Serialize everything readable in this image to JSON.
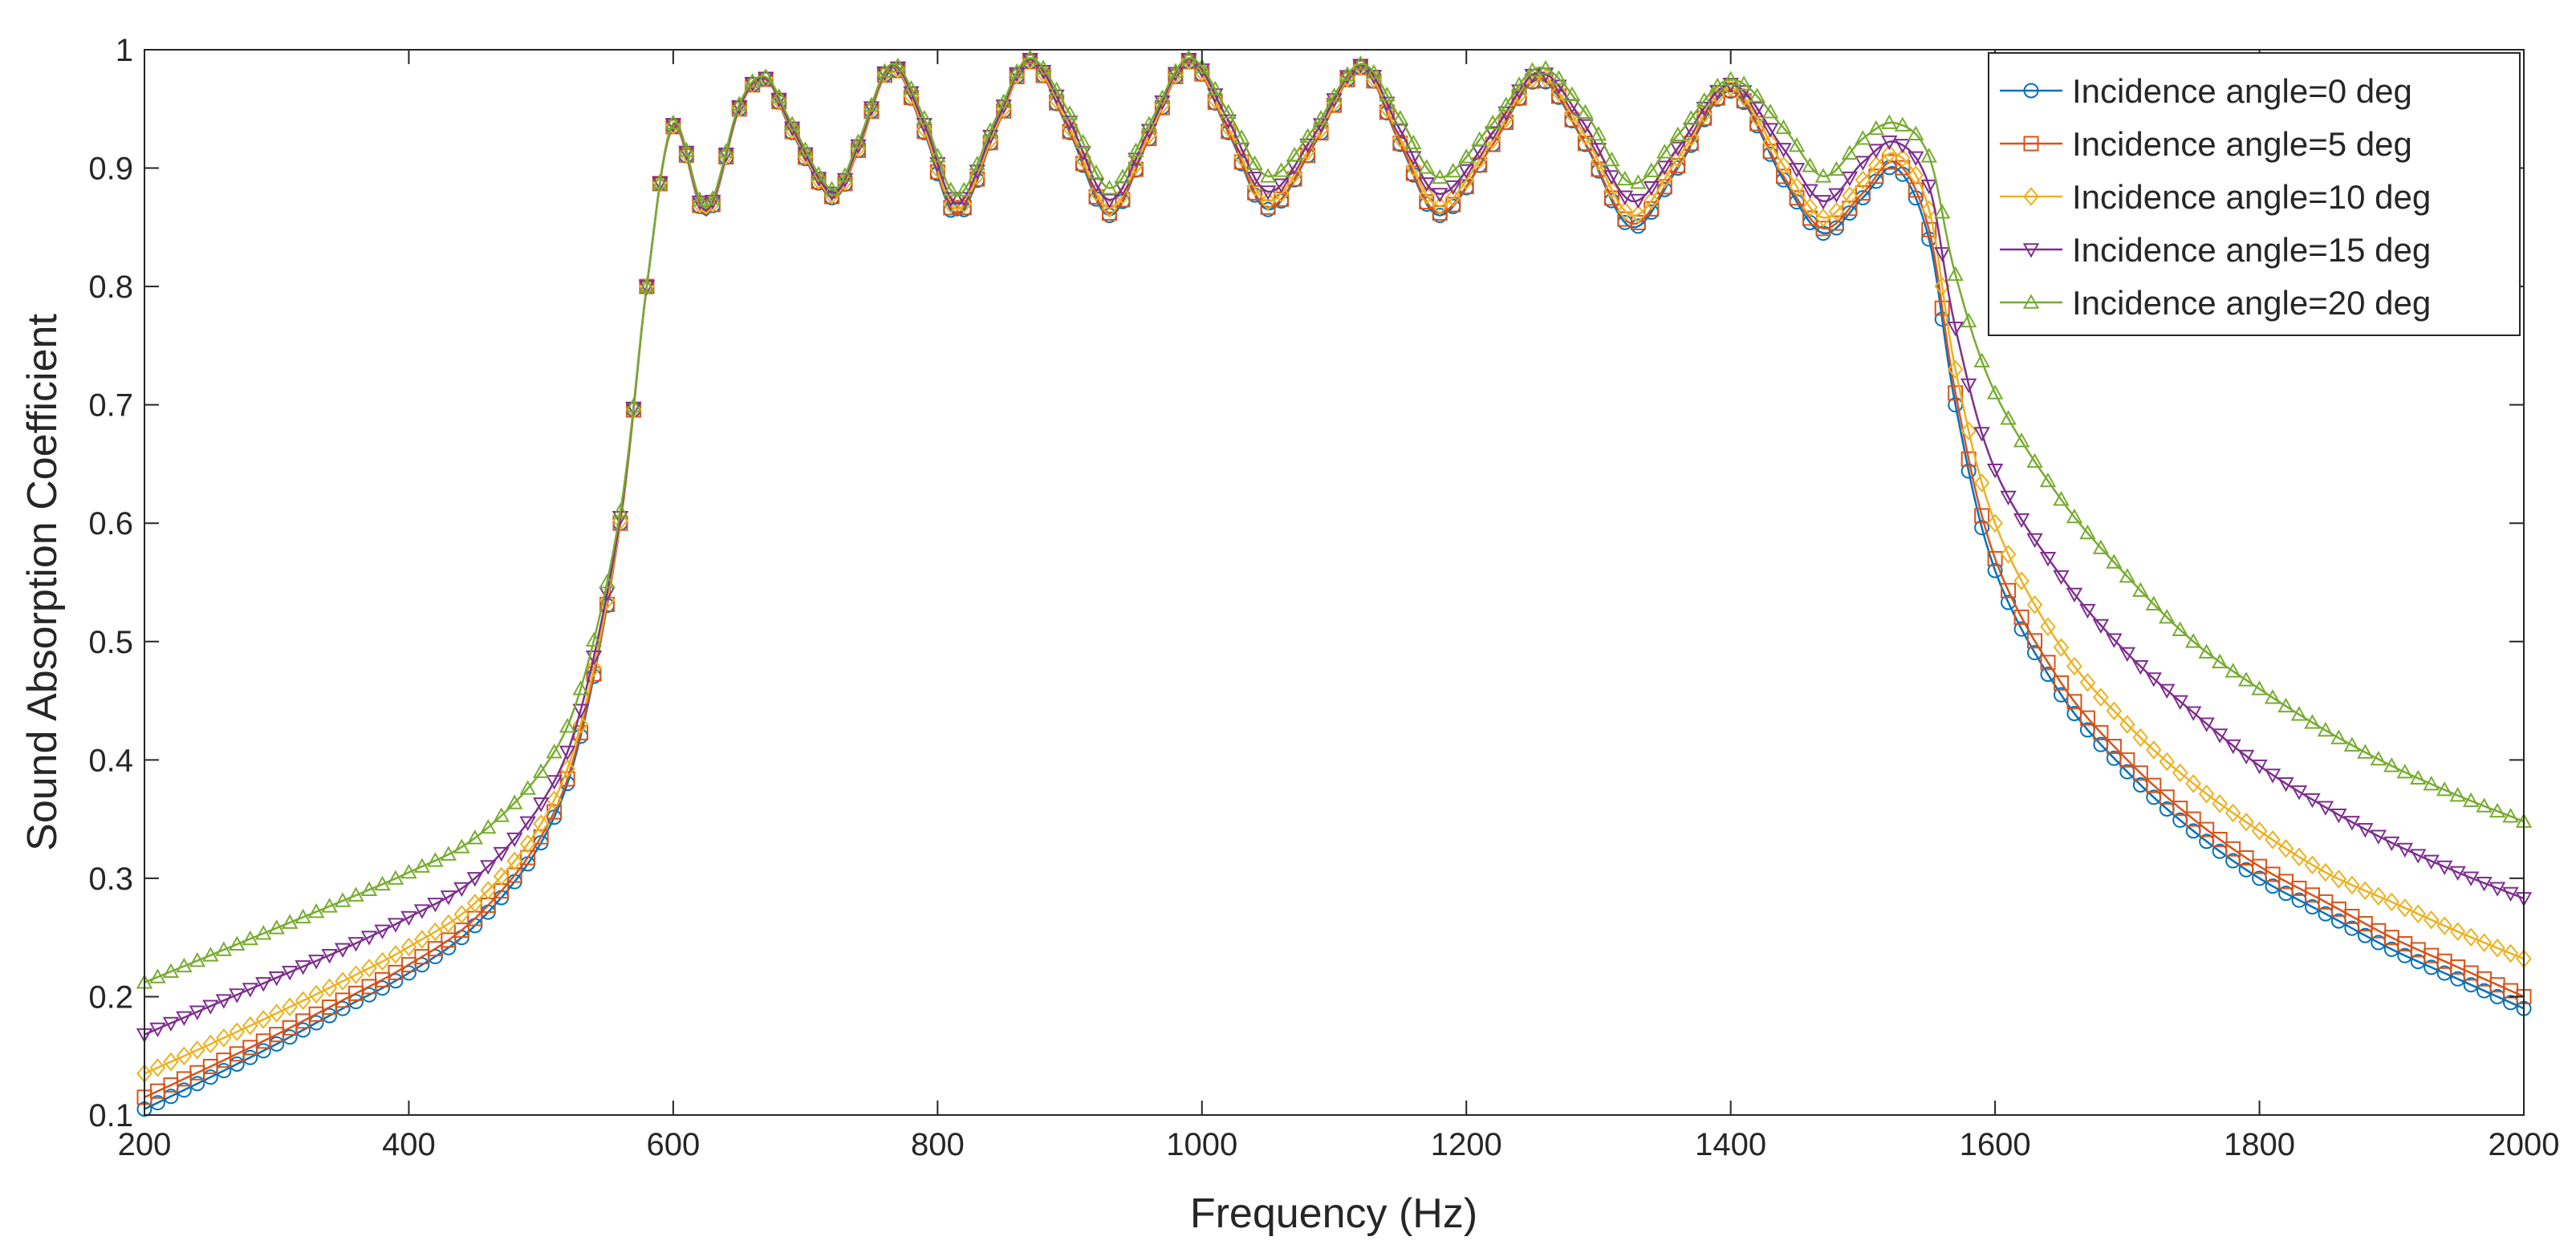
{
  "chart_data": {
    "type": "line",
    "title": "",
    "xlabel": "Frequency (Hz)",
    "ylabel": "Sound Absorption Coefficient",
    "xlim": [
      200,
      2000
    ],
    "ylim": [
      0.1,
      1
    ],
    "xticks": [
      200,
      400,
      600,
      800,
      1000,
      1200,
      1400,
      1600,
      1800,
      2000
    ],
    "yticks": [
      0.1,
      0.2,
      0.3,
      0.4,
      0.5,
      0.6,
      0.7,
      0.8,
      0.9,
      1
    ],
    "ytick_labels": [
      "0.1",
      "0.2",
      "0.3",
      "0.4",
      "0.5",
      "0.6",
      "0.7",
      "0.8",
      "0.9",
      "1"
    ],
    "grid": false,
    "legend_position": "top-right",
    "x": [
      200,
      250,
      300,
      350,
      400,
      450,
      500,
      530,
      560,
      580,
      600,
      625,
      650,
      670,
      690,
      720,
      740,
      765,
      790,
      815,
      845,
      870,
      900,
      930,
      960,
      990,
      1020,
      1050,
      1085,
      1120,
      1150,
      1180,
      1220,
      1255,
      1290,
      1325,
      1360,
      1400,
      1440,
      1470,
      1500,
      1525,
      1550,
      1570,
      1600,
      1650,
      1700,
      1750,
      1800,
      1850,
      1900,
      1950,
      2000
    ],
    "series": [
      {
        "name": "Incidence angle=0 deg",
        "color": "#0072BD",
        "marker": "circle",
        "values": [
          0.105,
          0.132,
          0.16,
          0.19,
          0.22,
          0.26,
          0.33,
          0.42,
          0.6,
          0.8,
          0.935,
          0.86,
          0.95,
          0.975,
          0.93,
          0.875,
          0.915,
          0.985,
          0.93,
          0.86,
          0.935,
          0.99,
          0.93,
          0.86,
          0.925,
          0.99,
          0.93,
          0.865,
          0.92,
          0.985,
          0.92,
          0.86,
          0.92,
          0.975,
          0.92,
          0.85,
          0.9,
          0.965,
          0.89,
          0.845,
          0.875,
          0.9,
          0.84,
          0.7,
          0.56,
          0.455,
          0.39,
          0.34,
          0.3,
          0.27,
          0.24,
          0.215,
          0.19
        ]
      },
      {
        "name": "Incidence angle=5 deg",
        "color": "#D95319",
        "marker": "square",
        "values": [
          0.115,
          0.141,
          0.168,
          0.197,
          0.227,
          0.266,
          0.335,
          0.423,
          0.6,
          0.8,
          0.935,
          0.861,
          0.95,
          0.975,
          0.931,
          0.876,
          0.915,
          0.985,
          0.931,
          0.862,
          0.935,
          0.99,
          0.931,
          0.862,
          0.925,
          0.99,
          0.931,
          0.867,
          0.92,
          0.985,
          0.921,
          0.862,
          0.92,
          0.976,
          0.921,
          0.853,
          0.902,
          0.966,
          0.893,
          0.849,
          0.879,
          0.905,
          0.848,
          0.71,
          0.57,
          0.465,
          0.4,
          0.35,
          0.31,
          0.28,
          0.25,
          0.225,
          0.2
        ]
      },
      {
        "name": "Incidence angle=10 deg",
        "color": "#EDB120",
        "marker": "diamond",
        "values": [
          0.135,
          0.16,
          0.186,
          0.213,
          0.242,
          0.279,
          0.346,
          0.43,
          0.602,
          0.8,
          0.936,
          0.862,
          0.951,
          0.976,
          0.932,
          0.877,
          0.917,
          0.986,
          0.933,
          0.865,
          0.937,
          0.991,
          0.934,
          0.866,
          0.928,
          0.991,
          0.934,
          0.872,
          0.923,
          0.986,
          0.925,
          0.868,
          0.924,
          0.978,
          0.927,
          0.86,
          0.908,
          0.968,
          0.902,
          0.858,
          0.89,
          0.912,
          0.865,
          0.73,
          0.6,
          0.495,
          0.43,
          0.38,
          0.34,
          0.305,
          0.28,
          0.255,
          0.232
        ]
      },
      {
        "name": "Incidence angle=15 deg",
        "color": "#7E2F8E",
        "marker": "triangle-down",
        "values": [
          0.168,
          0.192,
          0.216,
          0.24,
          0.267,
          0.3,
          0.363,
          0.442,
          0.605,
          0.8,
          0.937,
          0.864,
          0.952,
          0.976,
          0.934,
          0.879,
          0.919,
          0.987,
          0.937,
          0.87,
          0.94,
          0.992,
          0.939,
          0.873,
          0.932,
          0.992,
          0.94,
          0.88,
          0.928,
          0.987,
          0.932,
          0.878,
          0.93,
          0.981,
          0.936,
          0.872,
          0.917,
          0.971,
          0.916,
          0.872,
          0.905,
          0.922,
          0.885,
          0.765,
          0.645,
          0.555,
          0.49,
          0.44,
          0.395,
          0.36,
          0.33,
          0.305,
          0.283
        ]
      },
      {
        "name": "Incidence angle=20 deg",
        "color": "#77AC30",
        "marker": "triangle-up",
        "values": [
          0.212,
          0.235,
          0.258,
          0.281,
          0.305,
          0.334,
          0.39,
          0.46,
          0.61,
          0.8,
          0.938,
          0.866,
          0.954,
          0.977,
          0.937,
          0.882,
          0.922,
          0.988,
          0.942,
          0.877,
          0.944,
          0.993,
          0.946,
          0.883,
          0.937,
          0.993,
          0.947,
          0.893,
          0.934,
          0.988,
          0.942,
          0.892,
          0.938,
          0.985,
          0.947,
          0.887,
          0.928,
          0.975,
          0.934,
          0.893,
          0.925,
          0.938,
          0.91,
          0.81,
          0.71,
          0.62,
          0.555,
          0.5,
          0.46,
          0.425,
          0.395,
          0.37,
          0.348
        ]
      }
    ]
  }
}
